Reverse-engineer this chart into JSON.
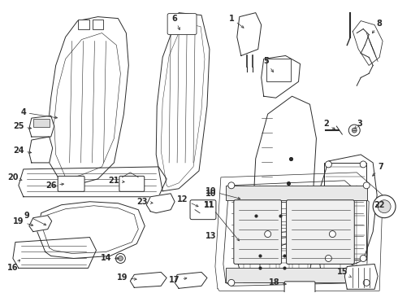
{
  "bg_color": "#ffffff",
  "line_color": "#2a2a2a",
  "figsize": [
    4.9,
    3.6
  ],
  "dpi": 100,
  "lw": 0.7,
  "label_fs": 7.0
}
